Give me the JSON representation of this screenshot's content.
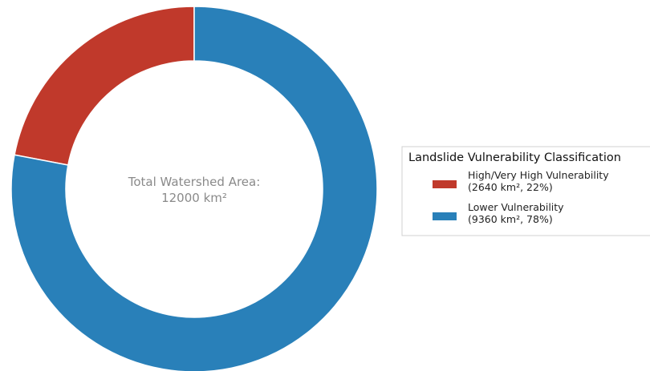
{
  "chart_data": {
    "type": "pie",
    "style": "donut",
    "center_label": [
      "Total Watershed Area:",
      "12000 km²"
    ],
    "total": 12000,
    "unit": "km²",
    "slices": [
      {
        "name": "High/Very High Vulnerability",
        "value": 2640,
        "percent": 22,
        "color": "#c0392b",
        "legend_lines": [
          "High/Very High Vulnerability",
          "(2640 km², 22%)"
        ]
      },
      {
        "name": "Lower Vulnerability",
        "value": 9360,
        "percent": 78,
        "color": "#2980b9",
        "legend_lines": [
          "Lower Vulnerability",
          "(9360 km², 78%)"
        ]
      }
    ],
    "legend": {
      "title": "Landslide Vulnerability Classification",
      "placement": "right"
    },
    "start_angle": "top",
    "direction": "counterclockwise from top for first slice"
  }
}
